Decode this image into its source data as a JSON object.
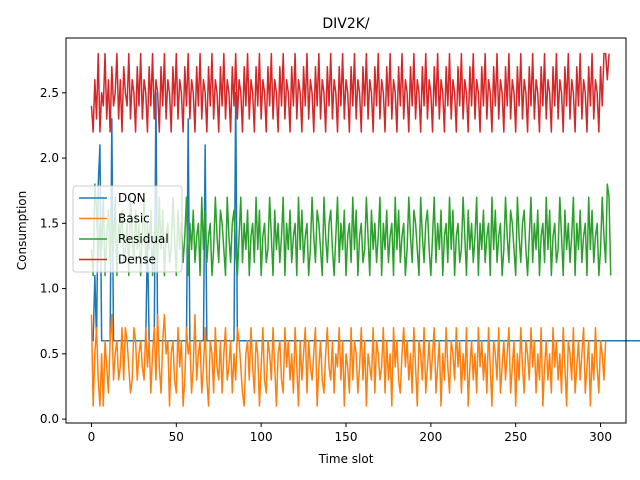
{
  "chart_data": {
    "type": "line",
    "title": "DIV2K/",
    "xlabel": "Time slot",
    "ylabel": "Consumption",
    "xlim": [
      -15,
      315
    ],
    "ylim": [
      -0.03,
      2.92
    ],
    "xticks": [
      "0",
      "50",
      "100",
      "150",
      "200",
      "250",
      "300"
    ],
    "yticks": [
      "0.0",
      "0.5",
      "1.0",
      "1.5",
      "2.0",
      "2.5"
    ],
    "grid": false,
    "legend_position": "center-left",
    "x": "0..300 step 1",
    "series": [
      {
        "name": "DQN",
        "color": "#1f77b4",
        "values": [
          0.6,
          0.6,
          1.1,
          0.6,
          1.8,
          2.1,
          0.6,
          0.6,
          0.6,
          0.6,
          0.6,
          0.6,
          2.3,
          0.6,
          0.6,
          0.6,
          0.6,
          0.6,
          0.6,
          0.6,
          0.6,
          0.6,
          0.6,
          0.6,
          0.6,
          0.6,
          0.6,
          0.6,
          0.6,
          0.6,
          0.6,
          0.6,
          0.6,
          1.4,
          0.6,
          0.6,
          0.6,
          0.6,
          2.5,
          0.6,
          0.6,
          0.6,
          0.6,
          0.6,
          0.6,
          0.6,
          0.6,
          0.6,
          0.6,
          0.6,
          0.6,
          0.6,
          0.6,
          0.6,
          0.6,
          0.6,
          0.6,
          2.3,
          0.6,
          0.6,
          0.6,
          0.6,
          0.6,
          0.6,
          0.6,
          0.6,
          0.6,
          2.1,
          0.6,
          0.6,
          0.6,
          0.6,
          0.6,
          0.6,
          0.6,
          0.6,
          0.6,
          0.6,
          0.6,
          0.6,
          0.6,
          0.6,
          0.6,
          0.6,
          0.6,
          2.5,
          0.6,
          0.6,
          0.6,
          0.6,
          0.6,
          0.6,
          0.6,
          0.6,
          0.6,
          0.6,
          0.6,
          0.6,
          0.6,
          0.6,
          0.6,
          0.6,
          0.6,
          0.6,
          0.6,
          0.6,
          0.6,
          0.6,
          0.6,
          0.6,
          0.6,
          0.6,
          0.6,
          0.6,
          0.6,
          0.6,
          0.6,
          0.6,
          0.6,
          0.6,
          0.6,
          0.6,
          0.6,
          0.6,
          0.6,
          0.6,
          0.6,
          0.6,
          0.6,
          0.6,
          0.6,
          0.6,
          0.6,
          0.6,
          0.6,
          0.6,
          0.6,
          0.6,
          0.6,
          0.6,
          0.6,
          0.6,
          0.6,
          0.6,
          0.6,
          0.6,
          0.6,
          0.6,
          0.6,
          0.6,
          0.6,
          0.6,
          0.6,
          0.6,
          0.6,
          0.6,
          0.6,
          0.6,
          0.6,
          0.6,
          0.6,
          0.6,
          0.6,
          0.6,
          0.6,
          0.6,
          0.6,
          0.6,
          0.6,
          0.6,
          0.6,
          0.6,
          0.6,
          0.6,
          0.6,
          0.6,
          0.6,
          0.6,
          0.6,
          0.6,
          0.6,
          0.6,
          0.6,
          0.6,
          0.6,
          0.6,
          0.6,
          0.6,
          0.6,
          0.6,
          0.6,
          0.6,
          0.6,
          0.6,
          0.6,
          0.6,
          0.6,
          0.6,
          0.6,
          0.6,
          0.6,
          0.6,
          0.6,
          0.6,
          0.6,
          0.6,
          0.6,
          0.6,
          0.6,
          0.6,
          0.6,
          0.6,
          0.6,
          0.6,
          0.6,
          0.6,
          0.6,
          0.6,
          0.6,
          0.6,
          0.6,
          0.6,
          0.6,
          0.6,
          0.6,
          0.6,
          0.6,
          0.6,
          0.6,
          0.6,
          0.6,
          0.6,
          0.6,
          0.6,
          0.6,
          0.6,
          0.6,
          0.6,
          0.6,
          0.6,
          0.6,
          0.6,
          0.6,
          0.6,
          0.6,
          0.6,
          0.6,
          0.6,
          0.6,
          0.6,
          0.6,
          0.6,
          0.6,
          0.6,
          0.6,
          0.6,
          0.6,
          0.6,
          0.6,
          0.6,
          0.6,
          0.6,
          0.6,
          0.6,
          0.6,
          0.6,
          0.6,
          0.6,
          0.6,
          0.6,
          0.6,
          0.6,
          0.6,
          0.6,
          0.6,
          0.6,
          0.6,
          0.6,
          0.6,
          0.6,
          0.6,
          0.6,
          0.6,
          0.6,
          0.6,
          0.6,
          0.6,
          0.6,
          0.6,
          0.6,
          0.6,
          0.6,
          0.6,
          0.6,
          0.6,
          0.6,
          0.6,
          0.6,
          0.6,
          0.6,
          0.6,
          0.6,
          0.6,
          0.6,
          0.6,
          0.6,
          0.6,
          0.6,
          0.6,
          0.6,
          0.6,
          0.6,
          0.6,
          0.6,
          0.6,
          0.6,
          0.6,
          0.6,
          0.6,
          0.6,
          0.6,
          0.6,
          0.6,
          0.6,
          0.6,
          0.6,
          0.6,
          0.6,
          0.6,
          0.6,
          0.6,
          0.6,
          0.6,
          0.6,
          0.6
        ]
      },
      {
        "name": "Basic",
        "color": "#ff7f0e",
        "values": [
          0.8,
          0.1,
          0.5,
          0.7,
          0.3,
          0.1,
          0.5,
          0.1,
          0.6,
          0.4,
          0.2,
          0.6,
          0.8,
          0.3,
          0.5,
          0.6,
          0.3,
          0.4,
          0.7,
          0.3,
          0.7,
          0.6,
          0.4,
          0.2,
          0.3,
          0.7,
          0.6,
          0.3,
          0.5,
          0.6,
          0.4,
          0.3,
          0.7,
          0.4,
          0.6,
          0.2,
          0.5,
          0.7,
          0.3,
          0.8,
          0.4,
          0.2,
          0.6,
          0.8,
          0.5,
          0.6,
          0.1,
          0.5,
          0.6,
          0.3,
          0.2,
          0.7,
          0.4,
          0.6,
          0.1,
          0.3,
          0.7,
          0.5,
          0.6,
          0.2,
          0.4,
          0.8,
          0.3,
          0.5,
          0.6,
          0.2,
          0.4,
          0.7,
          0.3,
          0.1,
          0.6,
          0.5,
          0.2,
          0.7,
          0.4,
          0.3,
          0.6,
          0.2,
          0.5,
          0.7,
          0.3,
          0.4,
          0.6,
          0.2,
          0.5,
          0.3,
          0.7,
          0.6,
          0.4,
          0.2,
          0.1,
          0.5,
          0.6,
          0.3,
          0.7,
          0.4,
          0.2,
          0.6,
          0.5,
          0.1,
          0.4,
          0.7,
          0.3,
          0.2,
          0.6,
          0.5,
          0.3,
          0.7,
          0.4,
          0.1,
          0.5,
          0.6,
          0.3,
          0.2,
          0.7,
          0.4,
          0.6,
          0.3,
          0.5,
          0.2,
          0.7,
          0.4,
          0.1,
          0.6,
          0.3,
          0.5,
          0.7,
          0.2,
          0.6,
          0.4,
          0.3,
          0.5,
          0.7,
          0.1,
          0.4,
          0.6,
          0.3,
          0.2,
          0.5,
          0.7,
          0.4,
          0.3,
          0.6,
          0.2,
          0.5,
          0.4,
          0.7,
          0.3,
          0.6,
          0.1,
          0.5,
          0.4,
          0.2,
          0.7,
          0.3,
          0.6,
          0.5,
          0.2,
          0.4,
          0.7,
          0.3,
          0.6,
          0.1,
          0.5,
          0.4,
          0.3,
          0.7,
          0.2,
          0.6,
          0.5,
          0.3,
          0.4,
          0.7,
          0.2,
          0.6,
          0.3,
          0.5,
          0.1,
          0.7,
          0.4,
          0.6,
          0.3,
          0.2,
          0.5,
          0.7,
          0.4,
          0.6,
          0.3,
          0.5,
          0.2,
          0.7,
          0.4,
          0.1,
          0.6,
          0.5,
          0.3,
          0.7,
          0.2,
          0.4,
          0.6,
          0.3,
          0.5,
          0.7,
          0.2,
          0.4,
          0.6,
          0.1,
          0.5,
          0.3,
          0.7,
          0.4,
          0.2,
          0.6,
          0.5,
          0.3,
          0.7,
          0.4,
          0.6,
          0.2,
          0.5,
          0.3,
          0.7,
          0.1,
          0.4,
          0.6,
          0.3,
          0.5,
          0.2,
          0.7,
          0.4,
          0.6,
          0.3,
          0.5,
          0.2,
          0.7,
          0.4,
          0.1,
          0.6,
          0.5,
          0.3,
          0.7,
          0.2,
          0.4,
          0.6,
          0.3,
          0.5,
          0.7,
          0.2,
          0.4,
          0.6,
          0.1,
          0.5,
          0.3,
          0.7,
          0.4,
          0.2,
          0.6,
          0.5,
          0.3,
          0.7,
          0.4,
          0.6,
          0.2,
          0.5,
          0.3,
          0.7,
          0.1,
          0.4,
          0.6,
          0.3,
          0.5,
          0.2,
          0.7,
          0.4,
          0.6,
          0.3,
          0.5,
          0.2,
          0.7,
          0.4,
          0.1,
          0.6,
          0.5,
          0.3,
          0.7,
          0.2,
          0.4,
          0.6,
          0.3,
          0.5,
          0.7,
          0.2,
          0.4,
          0.6,
          0.1,
          0.5,
          0.3,
          0.7,
          0.4,
          0.2,
          0.6,
          0.5,
          0.3,
          0.6
        ]
      },
      {
        "name": "Residual",
        "color": "#2ca02c",
        "values": [
          1.3,
          1.1,
          1.8,
          1.6,
          1.2,
          1.5,
          1.3,
          1.7,
          1.1,
          1.4,
          1.6,
          1.2,
          1.5,
          1.3,
          1.7,
          1.1,
          1.5,
          1.4,
          1.6,
          1.2,
          1.3,
          1.5,
          1.1,
          1.7,
          1.4,
          1.2,
          1.6,
          1.3,
          1.5,
          1.1,
          1.4,
          1.7,
          1.2,
          1.5,
          1.3,
          1.6,
          1.1,
          1.4,
          1.5,
          1.2,
          1.7,
          1.3,
          1.6,
          1.1,
          1.4,
          1.5,
          1.2,
          1.3,
          1.7,
          1.4,
          1.1,
          1.6,
          1.3,
          1.5,
          1.2,
          1.4,
          1.7,
          1.1,
          1.5,
          1.3,
          1.6,
          1.2,
          1.4,
          1.5,
          1.1,
          1.7,
          1.3,
          1.6,
          1.2,
          1.4,
          1.5,
          1.1,
          1.3,
          1.7,
          1.4,
          1.2,
          1.6,
          1.5,
          1.3,
          1.1,
          1.7,
          1.4,
          1.2,
          1.5,
          1.6,
          1.3,
          1.1,
          1.4,
          1.7,
          1.2,
          1.5,
          1.3,
          1.6,
          1.1,
          1.4,
          1.5,
          1.2,
          1.7,
          1.3,
          1.6,
          1.1,
          1.4,
          1.5,
          1.2,
          1.3,
          1.7,
          1.4,
          1.1,
          1.6,
          1.3,
          1.5,
          1.2,
          1.4,
          1.7,
          1.1,
          1.5,
          1.3,
          1.6,
          1.2,
          1.4,
          1.5,
          1.1,
          1.7,
          1.3,
          1.6,
          1.2,
          1.4,
          1.5,
          1.1,
          1.3,
          1.7,
          1.4,
          1.2,
          1.6,
          1.5,
          1.3,
          1.1,
          1.7,
          1.4,
          1.2,
          1.5,
          1.6,
          1.3,
          1.1,
          1.4,
          1.7,
          1.2,
          1.5,
          1.3,
          1.6,
          1.1,
          1.4,
          1.5,
          1.2,
          1.7,
          1.3,
          1.6,
          1.1,
          1.4,
          1.5,
          1.2,
          1.3,
          1.7,
          1.4,
          1.1,
          1.6,
          1.3,
          1.5,
          1.2,
          1.4,
          1.7,
          1.1,
          1.5,
          1.3,
          1.6,
          1.2,
          1.4,
          1.5,
          1.1,
          1.7,
          1.3,
          1.6,
          1.2,
          1.4,
          1.5,
          1.1,
          1.3,
          1.7,
          1.4,
          1.2,
          1.6,
          1.5,
          1.3,
          1.1,
          1.7,
          1.4,
          1.2,
          1.5,
          1.6,
          1.3,
          1.1,
          1.4,
          1.7,
          1.2,
          1.5,
          1.3,
          1.6,
          1.1,
          1.4,
          1.5,
          1.2,
          1.7,
          1.3,
          1.6,
          1.1,
          1.4,
          1.5,
          1.2,
          1.3,
          1.7,
          1.4,
          1.1,
          1.6,
          1.3,
          1.5,
          1.2,
          1.4,
          1.7,
          1.1,
          1.5,
          1.3,
          1.6,
          1.2,
          1.4,
          1.5,
          1.1,
          1.7,
          1.3,
          1.6,
          1.2,
          1.4,
          1.5,
          1.1,
          1.3,
          1.7,
          1.4,
          1.2,
          1.6,
          1.5,
          1.3,
          1.1,
          1.7,
          1.4,
          1.2,
          1.5,
          1.6,
          1.3,
          1.1,
          1.4,
          1.7,
          1.2,
          1.5,
          1.3,
          1.6,
          1.1,
          1.4,
          1.5,
          1.2,
          1.7,
          1.3,
          1.6,
          1.1,
          1.4,
          1.5,
          1.2,
          1.3,
          1.7,
          1.4,
          1.1,
          1.6,
          1.3,
          1.5,
          1.2,
          1.4,
          1.7,
          1.1,
          1.5,
          1.3,
          1.6,
          1.2,
          1.4,
          1.5,
          1.1,
          1.7,
          1.3,
          1.6,
          1.2,
          1.4,
          1.5,
          1.1,
          1.3,
          1.7,
          1.4,
          1.2,
          1.8,
          1.7,
          1.1
        ]
      },
      {
        "name": "Dense",
        "color": "#d62728",
        "values": [
          2.4,
          2.2,
          2.6,
          2.3,
          2.8,
          2.2,
          2.5,
          2.4,
          2.8,
          2.3,
          2.6,
          2.2,
          2.7,
          2.4,
          2.5,
          2.8,
          2.3,
          2.6,
          2.2,
          2.7,
          2.5,
          2.4,
          2.8,
          2.3,
          2.6,
          2.5,
          2.2,
          2.7,
          2.4,
          2.8,
          2.3,
          2.6,
          2.5,
          2.2,
          2.7,
          2.4,
          2.8,
          2.3,
          2.6,
          2.5,
          2.2,
          2.7,
          2.4,
          2.8,
          2.3,
          2.6,
          2.5,
          2.2,
          2.7,
          2.4,
          2.8,
          2.3,
          2.6,
          2.5,
          2.2,
          2.7,
          2.4,
          2.8,
          2.3,
          2.6,
          2.5,
          2.2,
          2.7,
          2.4,
          2.8,
          2.3,
          2.6,
          2.5,
          2.2,
          2.7,
          2.4,
          2.8,
          2.3,
          2.6,
          2.5,
          2.2,
          2.7,
          2.4,
          2.8,
          2.3,
          2.6,
          2.5,
          2.2,
          2.7,
          2.4,
          2.8,
          2.3,
          2.6,
          2.5,
          2.2,
          2.7,
          2.4,
          2.8,
          2.3,
          2.6,
          2.5,
          2.2,
          2.7,
          2.4,
          2.8,
          2.3,
          2.6,
          2.5,
          2.2,
          2.7,
          2.4,
          2.8,
          2.3,
          2.6,
          2.5,
          2.2,
          2.7,
          2.4,
          2.8,
          2.3,
          2.6,
          2.5,
          2.2,
          2.7,
          2.4,
          2.8,
          2.3,
          2.6,
          2.5,
          2.2,
          2.7,
          2.4,
          2.8,
          2.3,
          2.6,
          2.5,
          2.2,
          2.7,
          2.4,
          2.8,
          2.3,
          2.6,
          2.5,
          2.2,
          2.7,
          2.4,
          2.8,
          2.3,
          2.6,
          2.5,
          2.2,
          2.7,
          2.4,
          2.8,
          2.3,
          2.6,
          2.5,
          2.2,
          2.7,
          2.4,
          2.8,
          2.3,
          2.6,
          2.5,
          2.2,
          2.7,
          2.4,
          2.8,
          2.3,
          2.6,
          2.5,
          2.2,
          2.7,
          2.4,
          2.8,
          2.3,
          2.6,
          2.5,
          2.2,
          2.7,
          2.4,
          2.8,
          2.3,
          2.6,
          2.5,
          2.2,
          2.7,
          2.4,
          2.8,
          2.3,
          2.6,
          2.5,
          2.2,
          2.7,
          2.4,
          2.8,
          2.3,
          2.6,
          2.5,
          2.2,
          2.7,
          2.4,
          2.8,
          2.3,
          2.6,
          2.5,
          2.2,
          2.7,
          2.4,
          2.8,
          2.3,
          2.6,
          2.5,
          2.2,
          2.7,
          2.4,
          2.8,
          2.3,
          2.6,
          2.5,
          2.2,
          2.7,
          2.4,
          2.8,
          2.3,
          2.6,
          2.5,
          2.2,
          2.7,
          2.4,
          2.8,
          2.3,
          2.6,
          2.5,
          2.2,
          2.7,
          2.4,
          2.8,
          2.3,
          2.6,
          2.5,
          2.2,
          2.7,
          2.4,
          2.8,
          2.3,
          2.6,
          2.5,
          2.2,
          2.7,
          2.4,
          2.8,
          2.3,
          2.6,
          2.5,
          2.2,
          2.7,
          2.4,
          2.8,
          2.3,
          2.6,
          2.5,
          2.2,
          2.7,
          2.4,
          2.8,
          2.3,
          2.6,
          2.5,
          2.2,
          2.7,
          2.4,
          2.8,
          2.3,
          2.6,
          2.5,
          2.2,
          2.7,
          2.4,
          2.8,
          2.3,
          2.6,
          2.5,
          2.2,
          2.7,
          2.4,
          2.8,
          2.3,
          2.6,
          2.5,
          2.2,
          2.7,
          2.4,
          2.8,
          2.3,
          2.6,
          2.5,
          2.2,
          2.7,
          2.4,
          2.8,
          2.3,
          2.6,
          2.5,
          2.2,
          2.7,
          2.4,
          2.8,
          2.8,
          2.6,
          2.8
        ]
      }
    ]
  }
}
